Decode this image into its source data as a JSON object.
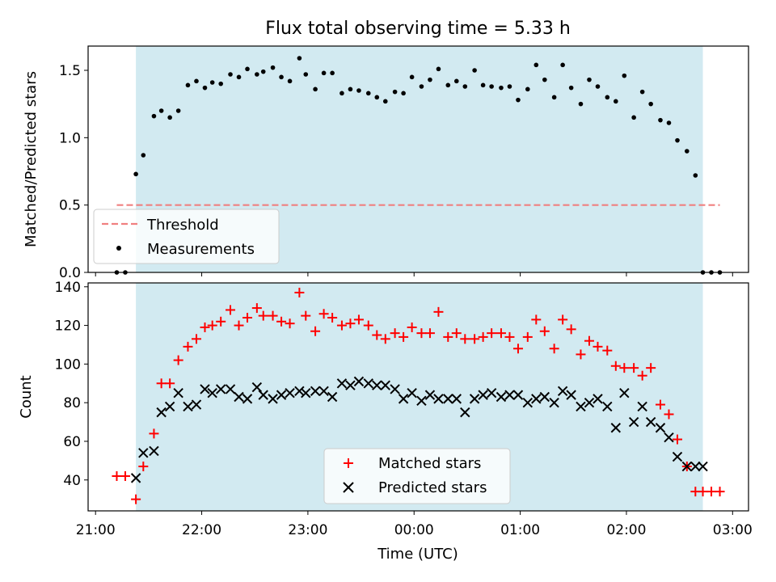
{
  "chart_data": [
    {
      "type": "scatter",
      "title": "Flux total observing time = 5.33 h",
      "xlabel": "",
      "ylabel": "Matched/Predicted stars",
      "ylim": [
        0,
        1.68
      ],
      "yticks": [
        "0.0",
        "0.5",
        "1.0",
        "1.5"
      ],
      "yticks_values": [
        0,
        0.5,
        1.0,
        1.5
      ],
      "x_range_hours": [
        20.93,
        27.15
      ],
      "shaded_span_hours": [
        21.38,
        26.72
      ],
      "shaded_color": "#add8e6",
      "grid": false,
      "legend_position": "lower-left",
      "series": [
        {
          "name": "Threshold",
          "kind": "dashed-line",
          "color": "#f08080",
          "x_hours": [
            21.2,
            26.88
          ],
          "y": [
            0.5,
            0.5
          ]
        },
        {
          "name": "Measurements",
          "kind": "dots",
          "color": "#000000",
          "x_hours": [
            21.2,
            21.28,
            21.38,
            21.45,
            21.55,
            21.62,
            21.7,
            21.78,
            21.87,
            21.95,
            22.03,
            22.1,
            22.18,
            22.27,
            22.35,
            22.43,
            22.52,
            22.58,
            22.67,
            22.75,
            22.83,
            22.92,
            22.98,
            23.07,
            23.15,
            23.23,
            23.32,
            23.4,
            23.48,
            23.57,
            23.65,
            23.73,
            23.82,
            23.9,
            23.98,
            24.07,
            24.15,
            24.23,
            24.32,
            24.4,
            24.48,
            24.57,
            24.65,
            24.73,
            24.82,
            24.9,
            24.98,
            25.07,
            25.15,
            25.23,
            25.32,
            25.4,
            25.48,
            25.57,
            25.65,
            25.73,
            25.82,
            25.9,
            25.98,
            26.07,
            26.15,
            26.23,
            26.32,
            26.4,
            26.48,
            26.57,
            26.65,
            26.72,
            26.8,
            26.88
          ],
          "y": [
            0.0,
            0.0,
            0.73,
            0.87,
            1.16,
            1.2,
            1.15,
            1.2,
            1.39,
            1.42,
            1.37,
            1.41,
            1.4,
            1.47,
            1.45,
            1.51,
            1.47,
            1.49,
            1.52,
            1.45,
            1.42,
            1.59,
            1.47,
            1.36,
            1.48,
            1.48,
            1.33,
            1.36,
            1.35,
            1.33,
            1.3,
            1.27,
            1.34,
            1.33,
            1.45,
            1.38,
            1.43,
            1.51,
            1.39,
            1.42,
            1.38,
            1.5,
            1.39,
            1.38,
            1.37,
            1.38,
            1.28,
            1.36,
            1.54,
            1.43,
            1.3,
            1.54,
            1.37,
            1.25,
            1.43,
            1.38,
            1.3,
            1.27,
            1.46,
            1.15,
            1.34,
            1.25,
            1.13,
            1.11,
            0.98,
            0.9,
            0.72,
            0.0,
            0.0,
            0.0
          ]
        }
      ]
    },
    {
      "type": "scatter",
      "title": "",
      "xlabel": "Time (UTC)",
      "ylabel": "Count",
      "ylim": [
        24,
        142
      ],
      "yticks": [
        "40",
        "60",
        "80",
        "100",
        "120",
        "140"
      ],
      "yticks_values": [
        40,
        60,
        80,
        100,
        120,
        140
      ],
      "xticks": [
        "21:00",
        "22:00",
        "23:00",
        "00:00",
        "01:00",
        "02:00",
        "03:00"
      ],
      "xticks_hours": [
        21,
        22,
        23,
        24,
        25,
        26,
        27
      ],
      "x_range_hours": [
        20.93,
        27.15
      ],
      "shaded_span_hours": [
        21.38,
        26.72
      ],
      "shaded_color": "#add8e6",
      "grid": false,
      "legend_position": "lower-center",
      "series": [
        {
          "name": "Matched stars",
          "marker": "plus",
          "color": "#ff0000",
          "x_hours": [
            21.2,
            21.28,
            21.38,
            21.45,
            21.55,
            21.62,
            21.7,
            21.78,
            21.87,
            21.95,
            22.03,
            22.1,
            22.18,
            22.27,
            22.35,
            22.43,
            22.52,
            22.58,
            22.67,
            22.75,
            22.83,
            22.92,
            22.98,
            23.07,
            23.15,
            23.23,
            23.32,
            23.4,
            23.48,
            23.57,
            23.65,
            23.73,
            23.82,
            23.9,
            23.98,
            24.07,
            24.15,
            24.23,
            24.32,
            24.4,
            24.48,
            24.57,
            24.65,
            24.73,
            24.82,
            24.9,
            24.98,
            25.07,
            25.15,
            25.23,
            25.32,
            25.4,
            25.48,
            25.57,
            25.65,
            25.73,
            25.82,
            25.9,
            25.98,
            26.07,
            26.15,
            26.23,
            26.32,
            26.4,
            26.48,
            26.57,
            26.65,
            26.72,
            26.8,
            26.88
          ],
          "y": [
            42,
            42,
            30,
            47,
            64,
            90,
            90,
            102,
            109,
            113,
            119,
            120,
            122,
            128,
            120,
            124,
            129,
            125,
            125,
            122,
            121,
            137,
            125,
            117,
            126,
            124,
            120,
            121,
            123,
            120,
            115,
            113,
            116,
            114,
            119,
            116,
            116,
            127,
            114,
            116,
            113,
            113,
            114,
            116,
            116,
            114,
            108,
            114,
            123,
            117,
            108,
            123,
            118,
            105,
            112,
            109,
            107,
            99,
            98,
            98,
            94,
            98,
            79,
            74,
            61,
            47,
            34,
            34,
            34,
            34
          ]
        },
        {
          "name": "Predicted stars",
          "marker": "x",
          "color": "#000000",
          "x_hours": [
            21.38,
            21.45,
            21.55,
            21.62,
            21.7,
            21.78,
            21.87,
            21.95,
            22.03,
            22.1,
            22.18,
            22.27,
            22.35,
            22.43,
            22.52,
            22.58,
            22.67,
            22.75,
            22.83,
            22.92,
            22.98,
            23.07,
            23.15,
            23.23,
            23.32,
            23.4,
            23.48,
            23.57,
            23.65,
            23.73,
            23.82,
            23.9,
            23.98,
            24.07,
            24.15,
            24.23,
            24.32,
            24.4,
            24.48,
            24.57,
            24.65,
            24.73,
            24.82,
            24.9,
            24.98,
            25.07,
            25.15,
            25.23,
            25.32,
            25.4,
            25.48,
            25.57,
            25.65,
            25.73,
            25.82,
            25.9,
            25.98,
            26.07,
            26.15,
            26.23,
            26.32,
            26.4,
            26.48,
            26.57,
            26.65,
            26.72
          ],
          "y": [
            41,
            54,
            55,
            75,
            78,
            85,
            78,
            79,
            87,
            85,
            87,
            87,
            83,
            82,
            88,
            84,
            82,
            84,
            85,
            86,
            85,
            86,
            86,
            83,
            90,
            89,
            91,
            90,
            89,
            89,
            87,
            82,
            85,
            81,
            84,
            82,
            82,
            82,
            75,
            82,
            84,
            85,
            83,
            84,
            84,
            80,
            82,
            83,
            80,
            86,
            84,
            78,
            80,
            82,
            78,
            67,
            85,
            70,
            78,
            70,
            67,
            62,
            52,
            47,
            47,
            47
          ]
        }
      ]
    }
  ]
}
